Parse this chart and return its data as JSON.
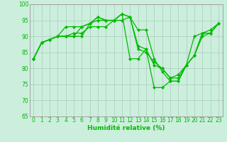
{
  "title": "",
  "xlabel": "Humidité relative (%)",
  "ylabel": "",
  "bg_color": "#cceedd",
  "line_color": "#00bb00",
  "marker": "D",
  "markersize": 2.0,
  "linewidth": 0.9,
  "ylim": [
    65,
    100
  ],
  "xlim": [
    -0.5,
    23.5
  ],
  "yticks": [
    65,
    70,
    75,
    80,
    85,
    90,
    95,
    100
  ],
  "xticks": [
    0,
    1,
    2,
    3,
    4,
    5,
    6,
    7,
    8,
    9,
    10,
    11,
    12,
    13,
    14,
    15,
    16,
    17,
    18,
    19,
    20,
    21,
    22,
    23
  ],
  "series": [
    [
      83,
      88,
      89,
      90,
      90,
      90,
      90,
      94,
      96,
      95,
      95,
      97,
      96,
      92,
      92,
      83,
      79,
      76,
      76,
      81,
      84,
      91,
      91,
      94
    ],
    [
      83,
      88,
      89,
      90,
      93,
      93,
      93,
      94,
      95,
      95,
      95,
      97,
      96,
      87,
      86,
      74,
      74,
      76,
      76,
      81,
      90,
      91,
      91,
      94
    ],
    [
      83,
      88,
      89,
      90,
      90,
      90,
      93,
      94,
      96,
      95,
      95,
      97,
      83,
      83,
      86,
      81,
      80,
      77,
      78,
      81,
      84,
      91,
      92,
      94
    ],
    [
      83,
      88,
      89,
      90,
      90,
      91,
      91,
      93,
      93,
      93,
      95,
      95,
      96,
      86,
      85,
      82,
      80,
      77,
      77,
      81,
      84,
      90,
      91,
      94
    ]
  ],
  "tick_fontsize": 5.5,
  "xlabel_fontsize": 6.5,
  "grid_color": "#aaccbb",
  "spine_color": "#999999"
}
